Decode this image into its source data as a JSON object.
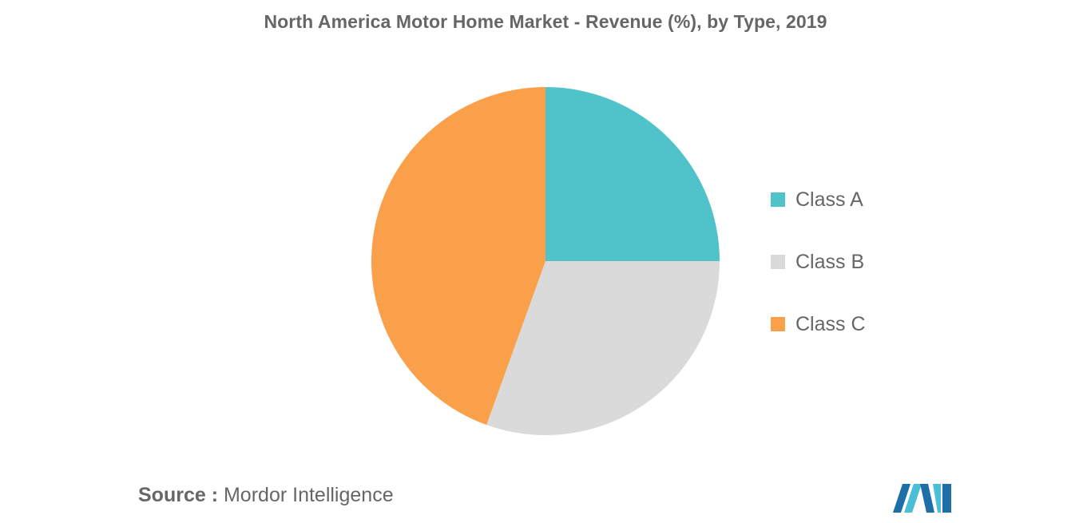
{
  "chart_data": {
    "type": "pie",
    "title": "North America Motor Home Market - Revenue (%), by Type, 2019",
    "categories": [
      "Class A",
      "Class B",
      "Class C"
    ],
    "values": [
      25,
      30.5,
      44.5
    ],
    "colors": [
      "#50C2C9",
      "#DADADA",
      "#FAA04B"
    ],
    "legend_position": "right",
    "start_angle_deg": 0,
    "direction": "clockwise"
  },
  "source": {
    "prefix": "Source :",
    "text": "Mordor Intelligence"
  },
  "logo": {
    "icon": "mordor-intelligence-logo-icon",
    "colors": [
      "#1E6FA8",
      "#4BBFD6"
    ]
  }
}
